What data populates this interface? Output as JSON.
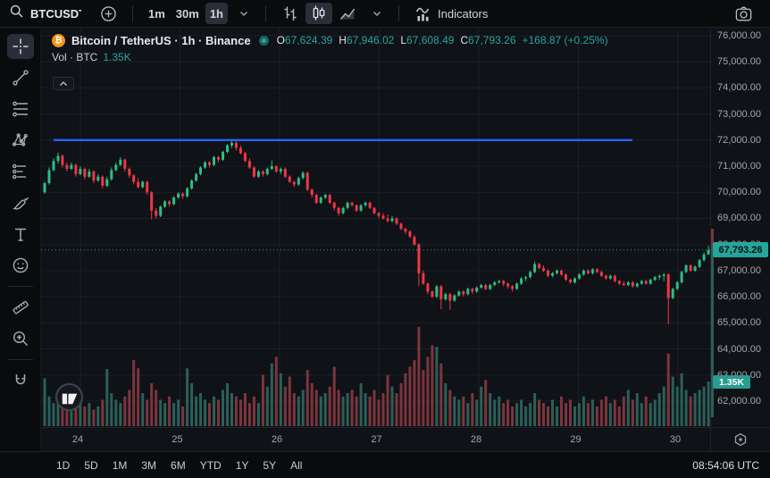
{
  "topbar": {
    "symbol": "BTCUSDT",
    "timeframes": [
      {
        "label": "1m",
        "active": false
      },
      {
        "label": "30m",
        "active": false
      },
      {
        "label": "1h",
        "active": true
      }
    ],
    "chart_types": [
      {
        "icon": "bars-icon",
        "active": false
      },
      {
        "icon": "candles-icon",
        "active": true
      },
      {
        "icon": "area-icon",
        "active": false
      }
    ],
    "indicators_label": "Indicators"
  },
  "legend": {
    "title": "Bitcoin / TetherUS · 1h · Binance",
    "ohlc": [
      {
        "label": "O",
        "value": "67,624.39"
      },
      {
        "label": "H",
        "value": "67,946.02"
      },
      {
        "label": "L",
        "value": "67,608.49"
      },
      {
        "label": "C",
        "value": "67,793.26"
      }
    ],
    "change": "+168.87 (+0.25%)",
    "volume_row": {
      "label": "Vol · BTC",
      "value": "1.35K"
    }
  },
  "left_tools": [
    "crosshair",
    "trend-line",
    "fib-retracement",
    "xabcd-pattern",
    "forecast",
    "brush",
    "text",
    "emoji",
    "divider",
    "ruler",
    "zoom-in",
    "divider",
    "magnet"
  ],
  "active_tool": "crosshair",
  "price_axis": {
    "ticks": [
      "76,000.00",
      "75,000.00",
      "74,000.00",
      "73,000.00",
      "72,000.00",
      "71,000.00",
      "70,000.00",
      "69,000.00",
      "68,000.00",
      "67,000.00",
      "66,000.00",
      "65,000.00",
      "64,000.00",
      "63,000.00",
      "62,000.00"
    ],
    "last_price_label": "67,793.26",
    "last_volume_label": "1.35K"
  },
  "time_axis": {
    "ticks": [
      "24",
      "25",
      "26",
      "27",
      "28",
      "29",
      "30"
    ]
  },
  "ranges": [
    "1D",
    "5D",
    "1M",
    "3M",
    "6M",
    "YTD",
    "1Y",
    "5Y",
    "All"
  ],
  "clock": "08:54:06 UTC",
  "colors": {
    "up": "#2dbd85",
    "down": "#f23645",
    "vol_up": "#2b5f58",
    "vol_down": "#7c353d",
    "blue_line": "#2962ff",
    "badge": "#26a69a",
    "accent_text": "#26a69a",
    "grid": "#1b1f27"
  },
  "chart_data": {
    "type": "candlestick",
    "symbol": "BTCUSDT",
    "exchange": "Binance",
    "interval": "1h",
    "title": "Bitcoin / TetherUS · 1h · Binance",
    "price_unit": "USDT (candle values in thousands)",
    "volume_unit": "K BTC",
    "y_ticks_thousands": [
      76,
      75,
      74,
      73,
      72,
      71,
      70,
      69,
      68,
      67,
      66,
      65,
      64,
      63,
      62
    ],
    "x_day_labels": [
      "24",
      "25",
      "26",
      "27",
      "28",
      "29",
      "30"
    ],
    "horizontal_line_price_thousands": 72.0,
    "last_price": 67793.26,
    "last_volume_k": 1.35,
    "ohlc_display": {
      "open": 67624.39,
      "high": 67946.02,
      "low": 67608.49,
      "close": 67793.26,
      "change": 168.87,
      "change_pct": 0.25
    },
    "candles": [
      [
        70.0,
        70.4,
        69.95,
        70.35,
        1.45
      ],
      [
        70.35,
        70.95,
        70.3,
        70.85,
        0.9
      ],
      [
        70.85,
        71.3,
        70.8,
        71.2,
        0.7
      ],
      [
        71.2,
        71.52,
        71.1,
        71.4,
        0.8
      ],
      [
        71.4,
        71.45,
        70.95,
        71.05,
        0.6
      ],
      [
        71.05,
        71.15,
        70.8,
        70.9,
        0.7
      ],
      [
        70.9,
        71.15,
        70.85,
        71.05,
        0.5
      ],
      [
        71.05,
        71.1,
        70.6,
        70.7,
        0.6
      ],
      [
        70.7,
        71.0,
        70.65,
        70.9,
        0.8
      ],
      [
        70.9,
        70.95,
        70.5,
        70.6,
        0.6
      ],
      [
        70.6,
        70.9,
        70.55,
        70.8,
        0.7
      ],
      [
        70.8,
        70.85,
        70.35,
        70.45,
        0.5
      ],
      [
        70.45,
        70.7,
        70.4,
        70.6,
        0.6
      ],
      [
        70.6,
        70.65,
        70.15,
        70.25,
        0.8
      ],
      [
        70.25,
        70.6,
        70.2,
        70.5,
        1.73
      ],
      [
        70.5,
        70.95,
        70.45,
        70.85,
        1.0
      ],
      [
        70.85,
        71.15,
        70.8,
        71.05,
        0.8
      ],
      [
        71.05,
        71.35,
        71.0,
        71.25,
        0.7
      ],
      [
        71.25,
        71.3,
        70.8,
        70.9,
        0.9
      ],
      [
        70.9,
        70.95,
        70.55,
        70.65,
        1.1
      ],
      [
        70.65,
        70.7,
        70.3,
        70.4,
        2.0
      ],
      [
        70.4,
        70.55,
        70.15,
        70.2,
        1.75
      ],
      [
        70.2,
        70.45,
        70.15,
        70.4,
        1.0
      ],
      [
        70.4,
        70.45,
        69.9,
        70.0,
        0.8
      ],
      [
        70.0,
        70.05,
        68.96,
        69.3,
        1.3
      ],
      [
        69.3,
        69.4,
        69.0,
        69.1,
        1.1
      ],
      [
        69.1,
        69.5,
        69.05,
        69.45,
        0.8
      ],
      [
        69.45,
        69.7,
        69.4,
        69.65,
        0.7
      ],
      [
        69.65,
        69.7,
        69.45,
        69.55,
        0.9
      ],
      [
        69.55,
        69.85,
        69.5,
        69.8,
        0.7
      ],
      [
        69.8,
        70.0,
        69.75,
        69.95,
        0.8
      ],
      [
        69.95,
        70.0,
        69.75,
        69.85,
        0.6
      ],
      [
        69.85,
        70.2,
        69.8,
        70.15,
        1.75
      ],
      [
        70.15,
        70.5,
        70.1,
        70.45,
        1.3
      ],
      [
        70.45,
        70.75,
        70.4,
        70.7,
        0.9
      ],
      [
        70.7,
        71.0,
        70.65,
        70.95,
        1.0
      ],
      [
        70.95,
        71.2,
        70.9,
        71.15,
        0.8
      ],
      [
        71.15,
        71.2,
        70.95,
        71.05,
        0.7
      ],
      [
        71.05,
        71.4,
        71.0,
        71.35,
        0.9
      ],
      [
        71.35,
        71.4,
        71.15,
        71.25,
        0.8
      ],
      [
        71.25,
        71.6,
        71.2,
        71.55,
        1.1
      ],
      [
        71.55,
        71.85,
        71.5,
        71.8,
        1.3
      ],
      [
        71.8,
        71.98,
        71.7,
        71.9,
        1.0
      ],
      [
        71.9,
        72.0,
        71.6,
        71.7,
        0.9
      ],
      [
        71.7,
        71.8,
        71.45,
        71.5,
        0.8
      ],
      [
        71.5,
        71.55,
        71.15,
        71.2,
        1.0
      ],
      [
        71.2,
        71.3,
        70.9,
        70.95,
        0.7
      ],
      [
        70.95,
        71.0,
        70.55,
        70.6,
        0.9
      ],
      [
        70.6,
        70.85,
        70.55,
        70.8,
        0.7
      ],
      [
        70.8,
        70.85,
        70.6,
        70.7,
        1.55
      ],
      [
        70.7,
        70.95,
        70.65,
        70.9,
        1.2
      ],
      [
        70.9,
        71.22,
        70.85,
        71.0,
        1.9
      ],
      [
        71.0,
        71.05,
        70.75,
        70.8,
        2.1
      ],
      [
        70.8,
        70.95,
        70.7,
        70.9,
        1.6
      ],
      [
        70.9,
        70.95,
        70.55,
        70.6,
        1.2
      ],
      [
        70.6,
        70.65,
        70.35,
        70.4,
        1.5
      ],
      [
        70.4,
        70.45,
        70.2,
        70.3,
        1.0
      ],
      [
        70.3,
        70.6,
        70.25,
        70.55,
        0.9
      ],
      [
        70.55,
        70.8,
        70.5,
        70.75,
        1.1
      ],
      [
        70.75,
        70.8,
        70.05,
        70.1,
        1.7
      ],
      [
        70.1,
        70.15,
        69.8,
        69.9,
        1.3
      ],
      [
        69.9,
        69.95,
        69.55,
        69.6,
        1.1
      ],
      [
        69.6,
        69.85,
        69.55,
        69.8,
        0.9
      ],
      [
        69.8,
        69.95,
        69.75,
        69.9,
        1.0
      ],
      [
        69.9,
        69.95,
        69.55,
        69.6,
        1.2
      ],
      [
        69.6,
        69.65,
        69.3,
        69.4,
        1.8
      ],
      [
        69.4,
        69.45,
        69.1,
        69.2,
        1.1
      ],
      [
        69.2,
        69.45,
        69.15,
        69.4,
        0.9
      ],
      [
        69.4,
        69.65,
        69.35,
        69.6,
        1.0
      ],
      [
        69.6,
        69.65,
        69.45,
        69.5,
        1.1
      ],
      [
        69.5,
        69.55,
        69.25,
        69.3,
        0.9
      ],
      [
        69.3,
        69.55,
        69.25,
        69.5,
        1.3
      ],
      [
        69.5,
        69.65,
        69.45,
        69.6,
        1.0
      ],
      [
        69.6,
        69.65,
        69.35,
        69.4,
        0.9
      ],
      [
        69.4,
        69.45,
        69.15,
        69.2,
        1.1
      ],
      [
        69.2,
        69.25,
        69.0,
        69.1,
        0.8
      ],
      [
        69.1,
        69.2,
        68.95,
        69.0,
        1.0
      ],
      [
        69.0,
        69.15,
        68.85,
        68.9,
        1.55
      ],
      [
        68.9,
        69.1,
        68.85,
        69.0,
        1.2
      ],
      [
        69.0,
        69.05,
        68.75,
        68.8,
        1.0
      ],
      [
        68.8,
        68.85,
        68.55,
        68.6,
        1.3
      ],
      [
        68.6,
        68.65,
        68.4,
        68.5,
        1.6
      ],
      [
        68.5,
        68.55,
        68.25,
        68.3,
        1.8
      ],
      [
        68.3,
        68.35,
        67.95,
        68.0,
        2.0
      ],
      [
        68.0,
        68.05,
        66.4,
        66.9,
        3.0
      ],
      [
        66.9,
        67.0,
        66.45,
        66.5,
        1.7
      ],
      [
        66.5,
        66.55,
        66.1,
        66.2,
        2.1
      ],
      [
        66.2,
        66.25,
        65.95,
        66.0,
        2.45
      ],
      [
        66.0,
        66.45,
        65.95,
        66.4,
        2.4
      ],
      [
        66.4,
        66.45,
        65.52,
        65.9,
        1.9
      ],
      [
        65.9,
        66.15,
        65.85,
        66.1,
        1.3
      ],
      [
        66.1,
        66.15,
        65.5,
        65.85,
        1.1
      ],
      [
        65.85,
        66.1,
        65.8,
        66.05,
        0.9
      ],
      [
        66.05,
        66.25,
        66.0,
        66.2,
        0.8
      ],
      [
        66.2,
        66.25,
        66.0,
        66.1,
        0.9
      ],
      [
        66.1,
        66.35,
        66.05,
        66.3,
        0.7
      ],
      [
        66.3,
        66.35,
        66.1,
        66.2,
        1.0
      ],
      [
        66.2,
        66.4,
        66.15,
        66.35,
        0.8
      ],
      [
        66.35,
        66.5,
        66.3,
        66.45,
        1.2
      ],
      [
        66.45,
        66.5,
        66.25,
        66.3,
        1.4
      ],
      [
        66.3,
        66.5,
        66.25,
        66.45,
        1.0
      ],
      [
        66.45,
        66.6,
        66.4,
        66.55,
        0.8
      ],
      [
        66.55,
        66.65,
        66.5,
        66.6,
        0.9
      ],
      [
        66.6,
        66.65,
        66.4,
        66.5,
        0.7
      ],
      [
        66.5,
        66.55,
        66.3,
        66.4,
        0.8
      ],
      [
        66.4,
        66.45,
        66.2,
        66.3,
        0.6
      ],
      [
        66.3,
        66.55,
        66.25,
        66.5,
        0.7
      ],
      [
        66.5,
        66.75,
        66.45,
        66.7,
        0.8
      ],
      [
        66.7,
        66.8,
        66.6,
        66.75,
        0.6
      ],
      [
        66.75,
        67.0,
        66.7,
        66.95,
        0.7
      ],
      [
        66.95,
        67.35,
        66.9,
        67.25,
        1.0
      ],
      [
        67.25,
        67.3,
        67.05,
        67.1,
        0.8
      ],
      [
        67.1,
        67.2,
        66.95,
        67.0,
        0.7
      ],
      [
        67.0,
        67.05,
        66.75,
        66.8,
        0.6
      ],
      [
        66.8,
        66.95,
        66.75,
        66.9,
        0.8
      ],
      [
        66.9,
        67.05,
        66.85,
        67.0,
        0.6
      ],
      [
        67.0,
        67.05,
        66.8,
        66.85,
        0.9
      ],
      [
        66.85,
        66.9,
        66.6,
        66.65,
        0.7
      ],
      [
        66.65,
        66.7,
        66.5,
        66.55,
        0.8
      ],
      [
        66.55,
        66.75,
        66.5,
        66.7,
        0.6
      ],
      [
        66.7,
        66.9,
        66.65,
        66.85,
        0.7
      ],
      [
        66.85,
        67.05,
        66.8,
        67.0,
        0.9
      ],
      [
        67.0,
        67.05,
        66.85,
        66.9,
        0.7
      ],
      [
        66.9,
        67.1,
        66.85,
        67.05,
        0.8
      ],
      [
        67.05,
        67.1,
        66.9,
        66.95,
        0.6
      ],
      [
        66.95,
        67.0,
        66.75,
        66.8,
        0.8
      ],
      [
        66.8,
        66.85,
        66.65,
        66.7,
        0.9
      ],
      [
        66.7,
        66.85,
        66.65,
        66.8,
        0.7
      ],
      [
        66.8,
        66.85,
        66.55,
        66.6,
        0.8
      ],
      [
        66.6,
        66.65,
        66.45,
        66.5,
        0.6
      ],
      [
        66.5,
        66.6,
        66.4,
        66.45,
        0.9
      ],
      [
        66.45,
        66.6,
        66.4,
        66.55,
        1.1
      ],
      [
        66.55,
        66.6,
        66.35,
        66.4,
        0.8
      ],
      [
        66.4,
        66.55,
        66.35,
        66.5,
        1.0
      ],
      [
        66.5,
        66.65,
        66.45,
        66.6,
        0.7
      ],
      [
        66.6,
        66.65,
        66.45,
        66.5,
        0.9
      ],
      [
        66.5,
        66.7,
        66.45,
        66.65,
        0.7
      ],
      [
        66.65,
        66.8,
        66.6,
        66.75,
        0.8
      ],
      [
        66.75,
        66.85,
        66.65,
        66.8,
        1.0
      ],
      [
        66.8,
        66.9,
        66.6,
        66.85,
        1.2
      ],
      [
        66.85,
        66.9,
        64.94,
        65.95,
        2.2
      ],
      [
        65.95,
        66.35,
        65.9,
        66.3,
        1.5
      ],
      [
        66.3,
        66.6,
        66.25,
        66.55,
        1.2
      ],
      [
        66.55,
        67.0,
        66.5,
        66.95,
        1.6
      ],
      [
        66.95,
        67.25,
        66.9,
        67.2,
        1.1
      ],
      [
        67.2,
        67.25,
        66.95,
        67.0,
        0.9
      ],
      [
        67.0,
        67.2,
        66.95,
        67.15,
        1.0
      ],
      [
        67.15,
        67.45,
        67.1,
        67.4,
        1.1
      ],
      [
        67.4,
        67.7,
        67.35,
        67.62,
        1.2
      ],
      [
        67.62,
        67.95,
        67.61,
        67.79,
        1.35
      ]
    ]
  }
}
